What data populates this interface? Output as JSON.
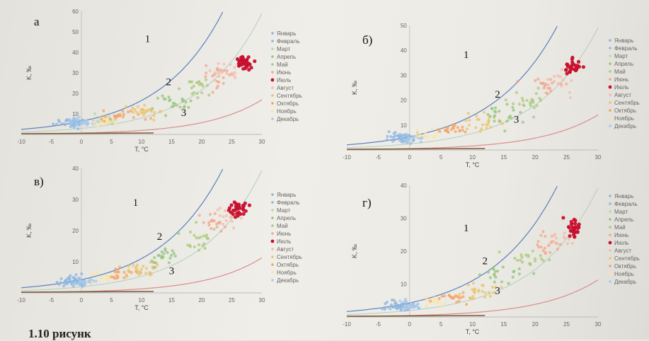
{
  "caption": "1.10 рисунк",
  "months": [
    "Январь",
    "Февраль",
    "Март",
    "Апрель",
    "Май",
    "Июнь",
    "Июль",
    "Август",
    "Сентябрь",
    "Октябрь",
    "Ноябрь",
    "Декабрь"
  ],
  "month_colors": [
    "#8bb4e0",
    "#8fb8e2",
    "#b9d7a6",
    "#93c47d",
    "#a9c97a",
    "#f1a58c",
    "#c8102e",
    "#f4b9a8",
    "#e9c46a",
    "#f4a261",
    "#fbe4a0",
    "#a7c8ea"
  ],
  "chart_data": [
    {
      "type": "scatter",
      "panel": "а",
      "xlabel": "T, °C",
      "ylabel": "K, ‰",
      "xlim": [
        -10,
        30
      ],
      "ylim": [
        0,
        60
      ],
      "xticks": [
        -10,
        -5,
        0,
        5,
        10,
        15,
        20,
        25,
        30
      ],
      "yticks": [
        10,
        20,
        30,
        40,
        50,
        60
      ],
      "curve_labels": [
        {
          "text": "1",
          "x": 11,
          "y": 45
        },
        {
          "text": "2",
          "x": 14.5,
          "y": 24
        },
        {
          "text": "3",
          "x": 17,
          "y": 9
        }
      ],
      "series": [
        {
          "month_index": 0,
          "center": [
            -1.5,
            6
          ],
          "spread": [
            2.2,
            2
          ],
          "n": 28
        },
        {
          "month_index": 1,
          "center": [
            -1,
            5.5
          ],
          "spread": [
            2,
            2
          ],
          "n": 26
        },
        {
          "month_index": 11,
          "center": [
            0,
            6
          ],
          "spread": [
            2,
            2
          ],
          "n": 22
        },
        {
          "month_index": 2,
          "center": [
            4,
            8
          ],
          "spread": [
            2.5,
            3
          ],
          "n": 14
        },
        {
          "month_index": 10,
          "center": [
            4,
            7
          ],
          "spread": [
            2,
            2
          ],
          "n": 16
        },
        {
          "month_index": 9,
          "center": [
            7,
            9
          ],
          "spread": [
            3,
            2.5
          ],
          "n": 22
        },
        {
          "month_index": 8,
          "center": [
            11,
            11
          ],
          "spread": [
            3,
            3.5
          ],
          "n": 26
        },
        {
          "month_index": 3,
          "center": [
            15,
            16
          ],
          "spread": [
            3,
            4
          ],
          "n": 22
        },
        {
          "month_index": 4,
          "center": [
            19,
            22
          ],
          "spread": [
            3,
            5
          ],
          "n": 22
        },
        {
          "month_index": 5,
          "center": [
            23,
            29
          ],
          "spread": [
            2.5,
            5
          ],
          "n": 20
        },
        {
          "month_index": 7,
          "center": [
            24,
            30
          ],
          "spread": [
            2,
            4
          ],
          "n": 18
        },
        {
          "month_index": 6,
          "center": [
            27,
            35
          ],
          "spread": [
            1.2,
            3
          ],
          "n": 34
        }
      ]
    },
    {
      "type": "scatter",
      "panel": "б)",
      "xlabel": "T, °C",
      "ylabel": "K, ‰",
      "xlim": [
        -10,
        30
      ],
      "ylim": [
        0,
        50
      ],
      "xticks": [
        -10,
        -5,
        0,
        5,
        10,
        15,
        20,
        25,
        30
      ],
      "yticks": [
        10,
        20,
        30,
        40,
        50
      ],
      "curve_labels": [
        {
          "text": "1",
          "x": 9,
          "y": 37
        },
        {
          "text": "2",
          "x": 14,
          "y": 21
        },
        {
          "text": "3",
          "x": 17,
          "y": 11
        }
      ],
      "series": [
        {
          "month_index": 0,
          "center": [
            -2,
            5
          ],
          "spread": [
            2,
            2
          ],
          "n": 24
        },
        {
          "month_index": 1,
          "center": [
            -1,
            4.5
          ],
          "spread": [
            2,
            2
          ],
          "n": 22
        },
        {
          "month_index": 11,
          "center": [
            0,
            5
          ],
          "spread": [
            2,
            1.8
          ],
          "n": 18
        },
        {
          "month_index": 10,
          "center": [
            3,
            6
          ],
          "spread": [
            2,
            2
          ],
          "n": 14
        },
        {
          "month_index": 9,
          "center": [
            7,
            8
          ],
          "spread": [
            2.5,
            2
          ],
          "n": 20
        },
        {
          "month_index": 8,
          "center": [
            11,
            11
          ],
          "spread": [
            3,
            3
          ],
          "n": 24
        },
        {
          "month_index": 3,
          "center": [
            14,
            15
          ],
          "spread": [
            3,
            4
          ],
          "n": 22
        },
        {
          "month_index": 4,
          "center": [
            19,
            20
          ],
          "spread": [
            3,
            4
          ],
          "n": 22
        },
        {
          "month_index": 5,
          "center": [
            22,
            26
          ],
          "spread": [
            2.5,
            4
          ],
          "n": 18
        },
        {
          "month_index": 7,
          "center": [
            24,
            28
          ],
          "spread": [
            2,
            4
          ],
          "n": 16
        },
        {
          "month_index": 6,
          "center": [
            26,
            33
          ],
          "spread": [
            1.2,
            3
          ],
          "n": 30
        }
      ]
    },
    {
      "type": "scatter",
      "panel": "в)",
      "xlabel": "T, °C",
      "ylabel": "K, ‰",
      "xlim": [
        -10,
        30
      ],
      "ylim": [
        0,
        40
      ],
      "xticks": [
        -10,
        -5,
        0,
        5,
        10,
        15,
        20,
        25,
        30
      ],
      "yticks": [
        10,
        20,
        30,
        40
      ],
      "curve_labels": [
        {
          "text": "1",
          "x": 9,
          "y": 28
        },
        {
          "text": "2",
          "x": 13,
          "y": 17
        },
        {
          "text": "3",
          "x": 15,
          "y": 6
        }
      ],
      "series": [
        {
          "month_index": 0,
          "center": [
            -2,
            4
          ],
          "spread": [
            2,
            1.5
          ],
          "n": 26
        },
        {
          "month_index": 1,
          "center": [
            -1,
            3.5
          ],
          "spread": [
            2,
            1.5
          ],
          "n": 24
        },
        {
          "month_index": 11,
          "center": [
            0,
            4
          ],
          "spread": [
            2,
            1.5
          ],
          "n": 18
        },
        {
          "month_index": 10,
          "center": [
            4,
            5
          ],
          "spread": [
            2,
            1.5
          ],
          "n": 16
        },
        {
          "month_index": 9,
          "center": [
            7,
            6.5
          ],
          "spread": [
            2.5,
            2
          ],
          "n": 20
        },
        {
          "month_index": 8,
          "center": [
            10,
            8
          ],
          "spread": [
            3,
            2.5
          ],
          "n": 24
        },
        {
          "month_index": 3,
          "center": [
            14,
            12
          ],
          "spread": [
            3,
            3
          ],
          "n": 22
        },
        {
          "month_index": 4,
          "center": [
            19,
            17
          ],
          "spread": [
            3,
            3.5
          ],
          "n": 22
        },
        {
          "month_index": 5,
          "center": [
            22,
            22
          ],
          "spread": [
            2.5,
            3.5
          ],
          "n": 18
        },
        {
          "month_index": 7,
          "center": [
            24,
            24
          ],
          "spread": [
            2,
            3
          ],
          "n": 16
        },
        {
          "month_index": 6,
          "center": [
            26,
            27
          ],
          "spread": [
            1.2,
            2.5
          ],
          "n": 30
        }
      ]
    },
    {
      "type": "scatter",
      "panel": "г)",
      "xlabel": "T, °C",
      "ylabel": "K, ‰",
      "xlim": [
        -10,
        30
      ],
      "ylim": [
        0,
        40
      ],
      "xticks": [
        -10,
        -5,
        0,
        5,
        10,
        15,
        20,
        25,
        30
      ],
      "yticks": [
        10,
        20,
        30,
        40
      ],
      "curve_labels": [
        {
          "text": "1",
          "x": 9,
          "y": 26
        },
        {
          "text": "2",
          "x": 12,
          "y": 16
        },
        {
          "text": "3",
          "x": 14,
          "y": 7
        }
      ],
      "series": [
        {
          "month_index": 0,
          "center": [
            -2,
            3.5
          ],
          "spread": [
            2,
            1.5
          ],
          "n": 24
        },
        {
          "month_index": 1,
          "center": [
            -1,
            3
          ],
          "spread": [
            2,
            1.5
          ],
          "n": 22
        },
        {
          "month_index": 11,
          "center": [
            0,
            3.5
          ],
          "spread": [
            2,
            1.5
          ],
          "n": 18
        },
        {
          "month_index": 10,
          "center": [
            4,
            4.5
          ],
          "spread": [
            2,
            1.5
          ],
          "n": 14
        },
        {
          "month_index": 9,
          "center": [
            7,
            6
          ],
          "spread": [
            2.5,
            2
          ],
          "n": 20
        },
        {
          "month_index": 8,
          "center": [
            11,
            8
          ],
          "spread": [
            3,
            2.5
          ],
          "n": 24
        },
        {
          "month_index": 3,
          "center": [
            15,
            13
          ],
          "spread": [
            3,
            3
          ],
          "n": 20
        },
        {
          "month_index": 4,
          "center": [
            19,
            17
          ],
          "spread": [
            3,
            3.5
          ],
          "n": 20
        },
        {
          "month_index": 5,
          "center": [
            22,
            22
          ],
          "spread": [
            2.5,
            3.5
          ],
          "n": 18
        },
        {
          "month_index": 7,
          "center": [
            24,
            24
          ],
          "spread": [
            2,
            3
          ],
          "n": 16
        },
        {
          "month_index": 6,
          "center": [
            26,
            27
          ],
          "spread": [
            1,
            2.5
          ],
          "n": 30
        }
      ]
    }
  ]
}
